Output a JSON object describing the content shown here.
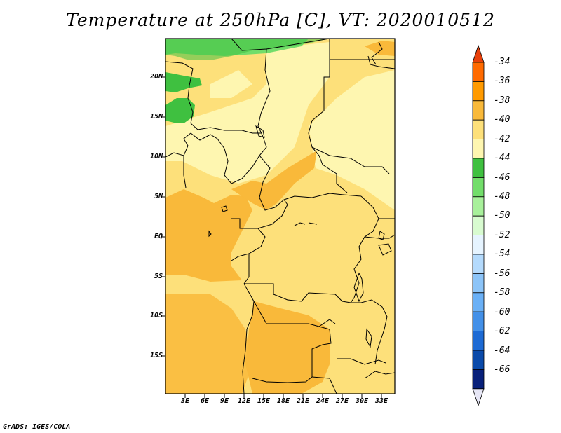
{
  "title": "Temperature at 250hPa [C], VT: 2020010512",
  "credit": "GrADS: IGES/COLA",
  "lat_labels": [
    "20N",
    "15N",
    "10N",
    "5N",
    "EQ",
    "5S",
    "10S",
    "15S"
  ],
  "lon_labels": [
    "3E",
    "6E",
    "9E",
    "12E",
    "15E",
    "18E",
    "21E",
    "24E",
    "27E",
    "30E",
    "33E"
  ],
  "colorbar": {
    "labels": [
      "-34",
      "-36",
      "-38",
      "-40",
      "-42",
      "-44",
      "-46",
      "-48",
      "-50",
      "-52",
      "-54",
      "-56",
      "-58",
      "-60",
      "-62",
      "-64",
      "-66"
    ],
    "colors": [
      "#e8400a",
      "#ff6a00",
      "#ff9a00",
      "#f9b93a",
      "#fde07a",
      "#fef6b0",
      "#3fc040",
      "#72dd6a",
      "#a8f09b",
      "#d8fbd0",
      "#e6f4ff",
      "#b4dafc",
      "#8cc4f8",
      "#6ab0f6",
      "#4390e8",
      "#1d6ad4",
      "#0a4aaa",
      "#08207a"
    ],
    "tip_low_color": "#e6e6f5"
  },
  "palette": {
    "ocean_orange": "#f9b93a",
    "land_yellow": "#fde07a",
    "pale_yellow": "#fef6b0",
    "green": "#3fc040",
    "light_green": "#72dd6a"
  }
}
